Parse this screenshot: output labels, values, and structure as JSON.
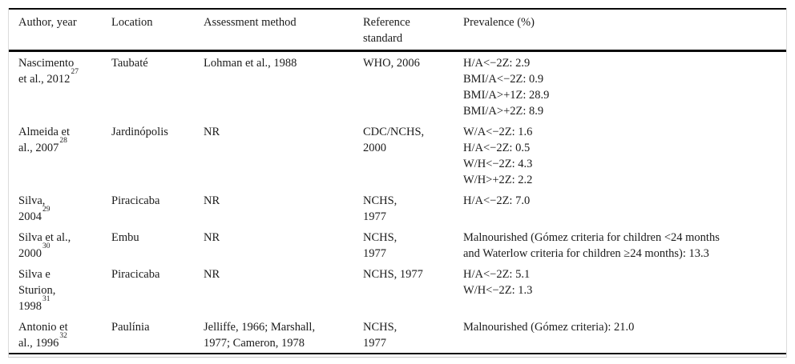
{
  "table": {
    "columns": [
      {
        "label_lines": [
          "Author, year"
        ]
      },
      {
        "label_lines": [
          "Location"
        ]
      },
      {
        "label_lines": [
          "Assessment method"
        ]
      },
      {
        "label_lines": [
          "Reference",
          "standard"
        ]
      },
      {
        "label_lines": [
          "Prevalence (%)"
        ]
      }
    ],
    "rows": [
      {
        "author_lines": [
          "Nascimento",
          "et al., 2012"
        ],
        "author_ref": "27",
        "location": "Taubaté",
        "method_lines": [
          "Lohman et al., 1988"
        ],
        "reference_lines": [
          "WHO, 2006"
        ],
        "prevalence_lines": [
          "H/A<−2Z: 2.9",
          "BMI/A<−2Z: 0.9",
          "BMI/A>+1Z: 28.9",
          "BMI/A>+2Z: 8.9"
        ]
      },
      {
        "author_lines": [
          "Almeida et",
          "al., 2007"
        ],
        "author_ref": "28",
        "location": "Jardinópolis",
        "method_lines": [
          "NR"
        ],
        "reference_lines": [
          "CDC/NCHS,",
          "2000"
        ],
        "prevalence_lines": [
          "W/A<−2Z: 1.6",
          "H/A<−2Z: 0.5",
          "W/H<−2Z: 4.3",
          "W/H>+2Z: 2.2"
        ]
      },
      {
        "author_lines": [
          "Silva,",
          "2004"
        ],
        "author_ref": "29",
        "location": "Piracicaba",
        "method_lines": [
          "NR"
        ],
        "reference_lines": [
          "NCHS,",
          "1977"
        ],
        "prevalence_lines": [
          "H/A<−2Z: 7.0"
        ]
      },
      {
        "author_lines": [
          "Silva et al.,",
          "2000"
        ],
        "author_ref": "30",
        "location": "Embu",
        "method_lines": [
          "NR"
        ],
        "reference_lines": [
          "NCHS,",
          "1977"
        ],
        "prevalence_lines": [
          "Malnourished (Gómez criteria for children <24 months",
          "and Waterlow criteria for children ≥24 months): 13.3"
        ]
      },
      {
        "author_lines": [
          "Silva e",
          "Sturion,",
          "1998"
        ],
        "author_ref": "31",
        "location": "Piracicaba",
        "method_lines": [
          "NR"
        ],
        "reference_lines": [
          "NCHS, 1977"
        ],
        "prevalence_lines": [
          "H/A<−2Z: 5.1",
          "W/H<−2Z: 1.3"
        ]
      },
      {
        "author_lines": [
          "Antonio et",
          "al., 1996"
        ],
        "author_ref": "32",
        "location": "Paulínia",
        "method_lines": [
          "Jelliffe, 1966; Marshall,",
          "1977; Cameron, 1978"
        ],
        "reference_lines": [
          "NCHS,",
          "1977"
        ],
        "prevalence_lines": [
          "Malnourished (Gómez criteria): 21.0"
        ]
      }
    ]
  }
}
